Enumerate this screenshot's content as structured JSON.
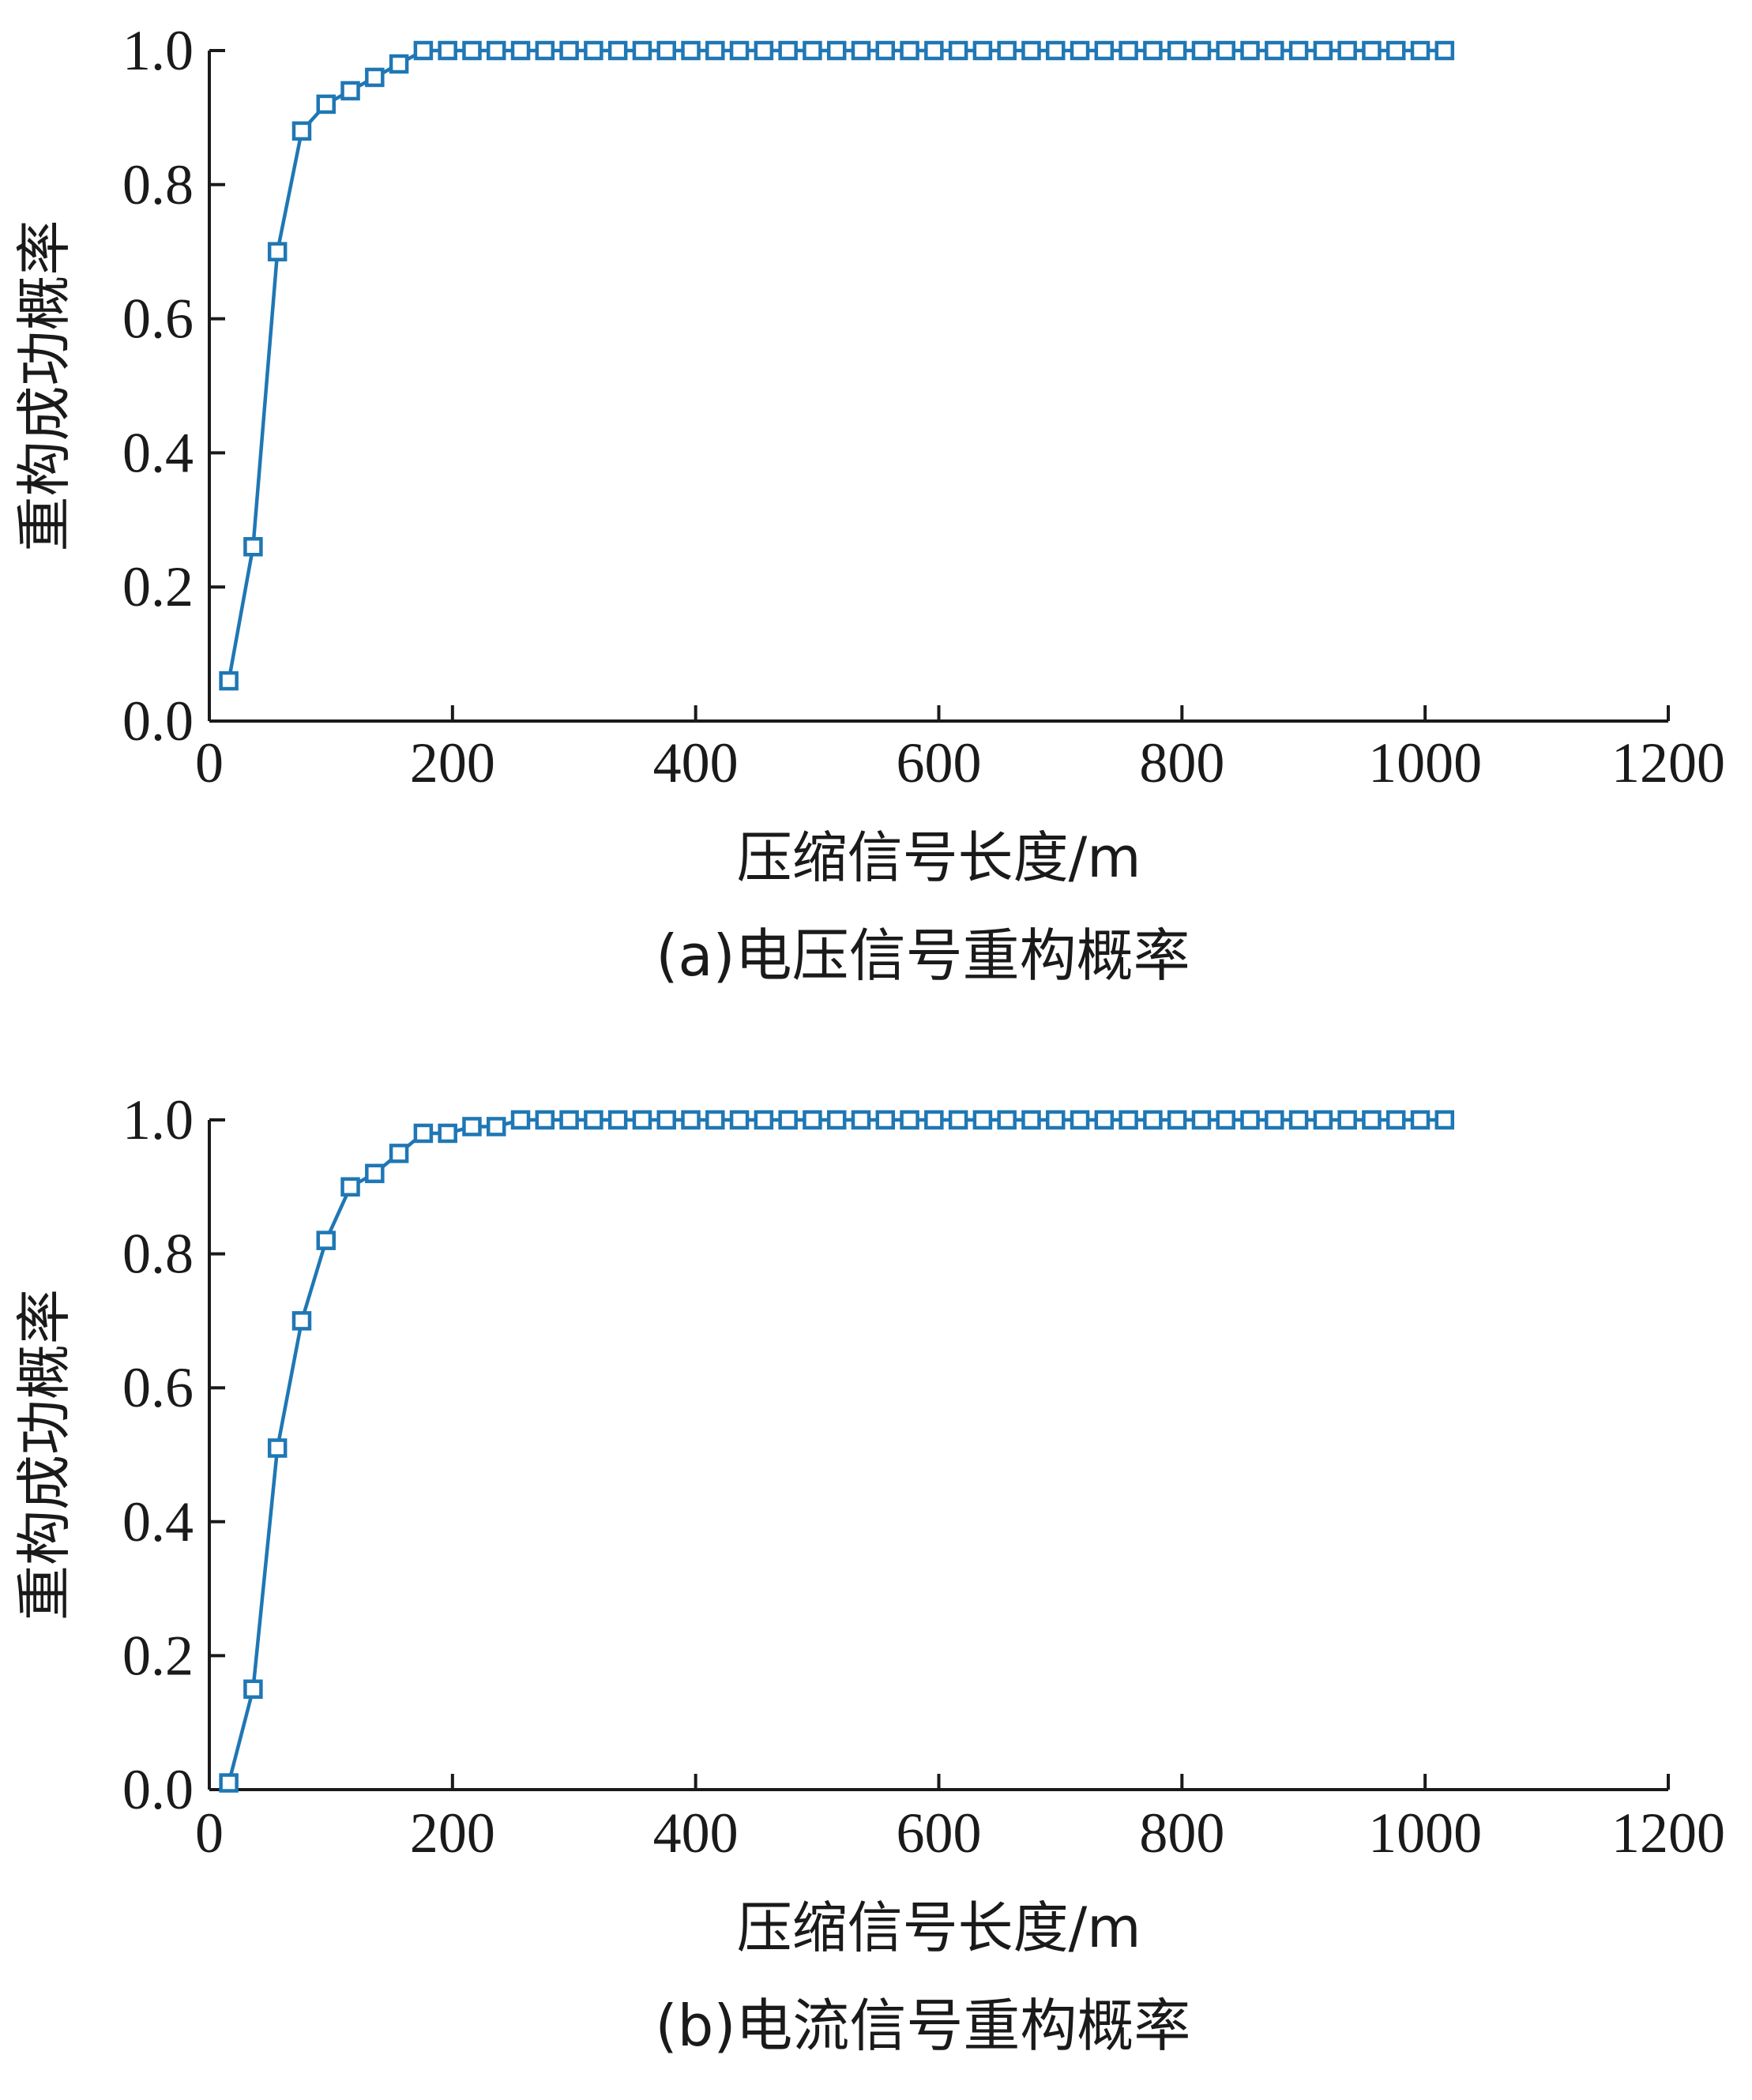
{
  "colors": {
    "series": "#1f77b4",
    "axis": "#1a1a1a",
    "background": "#ffffff"
  },
  "chart_data": [
    {
      "type": "line",
      "caption": "(a)电压信号重构概率",
      "xlabel": "压缩信号长度/m",
      "ylabel": "重构成功概率",
      "xlim": [
        0,
        1200
      ],
      "ylim": [
        0,
        1.0
      ],
      "xticks": [
        0,
        200,
        400,
        600,
        800,
        1000,
        1200
      ],
      "yticks": [
        "0.0",
        "0.2",
        "0.4",
        "0.6",
        "0.8",
        "1.0"
      ],
      "grid": false,
      "marker": "square",
      "x": [
        16,
        36,
        56,
        76,
        96,
        116,
        136,
        156,
        176,
        196,
        216,
        236,
        256,
        276,
        296,
        316,
        336,
        356,
        376,
        396,
        416,
        436,
        456,
        476,
        496,
        516,
        536,
        556,
        576,
        596,
        616,
        636,
        656,
        676,
        696,
        716,
        736,
        756,
        776,
        796,
        816,
        836,
        856,
        876,
        896,
        916,
        936,
        956,
        976,
        996,
        1016
      ],
      "y": [
        0.06,
        0.26,
        0.7,
        0.88,
        0.92,
        0.94,
        0.96,
        0.98,
        1,
        1,
        1,
        1,
        1,
        1,
        1,
        1,
        1,
        1,
        1,
        1,
        1,
        1,
        1,
        1,
        1,
        1,
        1,
        1,
        1,
        1,
        1,
        1,
        1,
        1,
        1,
        1,
        1,
        1,
        1,
        1,
        1,
        1,
        1,
        1,
        1,
        1,
        1,
        1,
        1,
        1,
        1
      ]
    },
    {
      "type": "line",
      "caption": "(b)电流信号重构概率",
      "xlabel": "压缩信号长度/m",
      "ylabel": "重构成功概率",
      "xlim": [
        0,
        1200
      ],
      "ylim": [
        0,
        1.0
      ],
      "xticks": [
        0,
        200,
        400,
        600,
        800,
        1000,
        1200
      ],
      "yticks": [
        "0.0",
        "0.2",
        "0.4",
        "0.6",
        "0.8",
        "1.0"
      ],
      "grid": false,
      "marker": "square",
      "x": [
        16,
        36,
        56,
        76,
        96,
        116,
        136,
        156,
        176,
        196,
        216,
        236,
        256,
        276,
        296,
        316,
        336,
        356,
        376,
        396,
        416,
        436,
        456,
        476,
        496,
        516,
        536,
        556,
        576,
        596,
        616,
        636,
        656,
        676,
        696,
        716,
        736,
        756,
        776,
        796,
        816,
        836,
        856,
        876,
        896,
        916,
        936,
        956,
        976,
        996,
        1016
      ],
      "y": [
        0.01,
        0.15,
        0.51,
        0.7,
        0.82,
        0.9,
        0.92,
        0.95,
        0.98,
        0.98,
        0.99,
        0.99,
        1,
        1,
        1,
        1,
        1,
        1,
        1,
        1,
        1,
        1,
        1,
        1,
        1,
        1,
        1,
        1,
        1,
        1,
        1,
        1,
        1,
        1,
        1,
        1,
        1,
        1,
        1,
        1,
        1,
        1,
        1,
        1,
        1,
        1,
        1,
        1,
        1,
        1,
        1
      ]
    }
  ]
}
